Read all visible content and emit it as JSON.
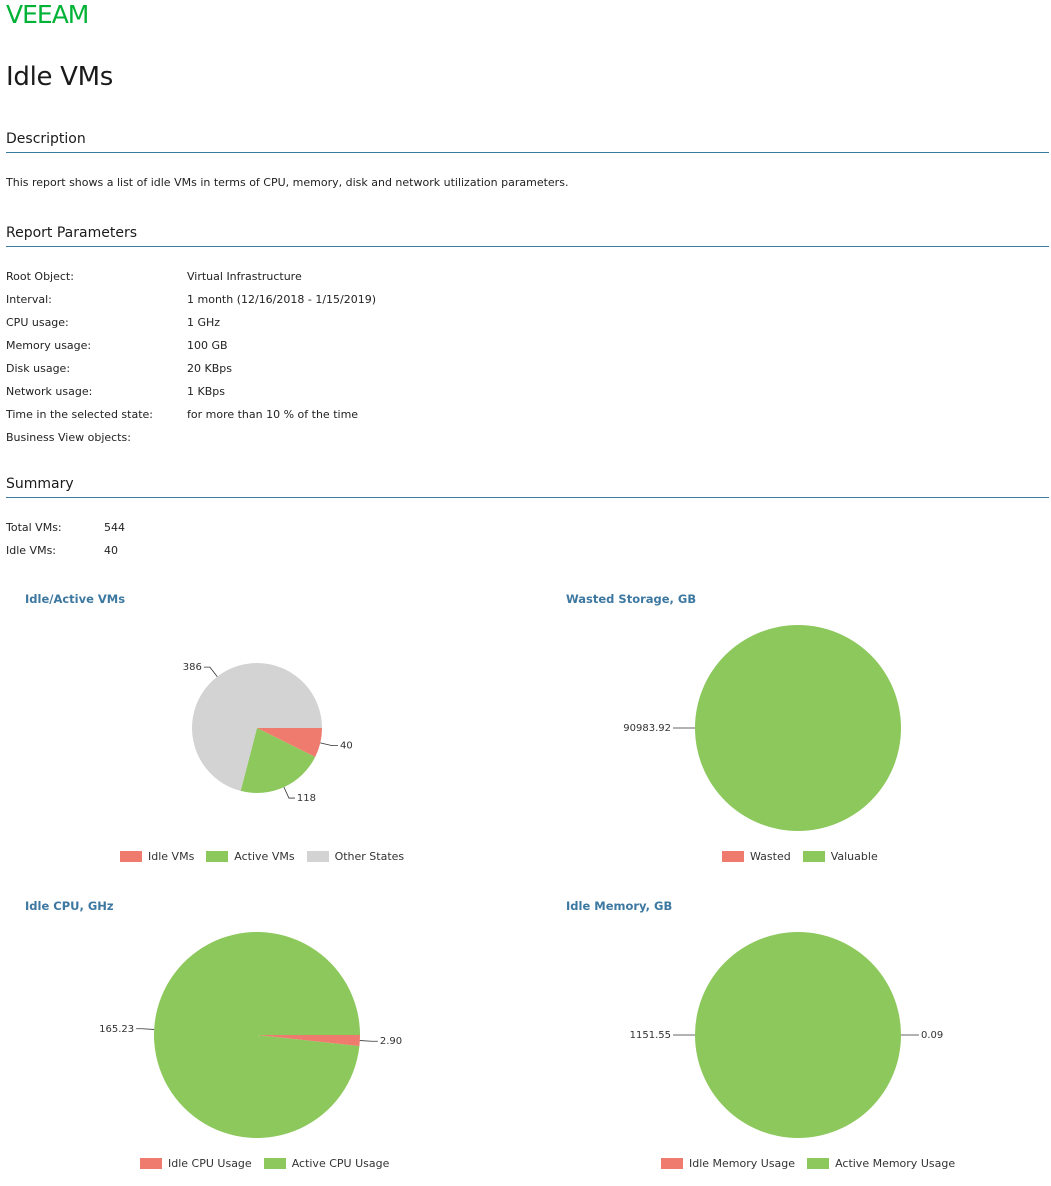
{
  "brand": {
    "logo_text": "VEEAM",
    "color": "#00b336"
  },
  "title": "Idle VMs",
  "sections": {
    "description": "Description",
    "parameters": "Report Parameters",
    "summary": "Summary"
  },
  "description_text": "This report shows a list of idle VMs in terms of CPU, memory, disk and network utilization parameters.",
  "parameters": [
    {
      "label": "Root Object:",
      "value": "Virtual Infrastructure"
    },
    {
      "label": "Interval:",
      "value": "1 month (12/16/2018 - 1/15/2019)"
    },
    {
      "label": "CPU usage:",
      "value": "1 GHz"
    },
    {
      "label": "Memory usage:",
      "value": "100 GB"
    },
    {
      "label": "Disk usage:",
      "value": "20 KBps"
    },
    {
      "label": "Network usage:",
      "value": "1 KBps"
    },
    {
      "label": "Time in the selected state:",
      "value": "for more than 10 % of the time"
    },
    {
      "label": "Business View objects:",
      "value": ""
    }
  ],
  "summary": [
    {
      "label": "Total VMs:",
      "value": "544"
    },
    {
      "label": "Idle VMs:",
      "value": "40"
    }
  ],
  "colors": {
    "red": "#ee7b6e",
    "green": "#8cc85c",
    "gray": "#d3d3d3",
    "section_rule": "#3c7a9e",
    "chart_title": "#3d78a1"
  },
  "chart_data": [
    {
      "type": "pie",
      "title": "Idle/Active VMs",
      "series": [
        {
          "name": "Idle VMs",
          "value": 40,
          "label": "40",
          "color": "#ee7b6e"
        },
        {
          "name": "Active VMs",
          "value": 118,
          "label": "118",
          "color": "#8cc85c"
        },
        {
          "name": "Other States",
          "value": 386,
          "label": "386",
          "color": "#d3d3d3"
        }
      ]
    },
    {
      "type": "pie",
      "title": "Wasted Storage, GB",
      "series": [
        {
          "name": "Wasted",
          "value": 0,
          "label": "",
          "color": "#ee7b6e"
        },
        {
          "name": "Valuable",
          "value": 90983.92,
          "label": "90983.92",
          "color": "#8cc85c"
        }
      ]
    },
    {
      "type": "pie",
      "title": "Idle CPU, GHz",
      "series": [
        {
          "name": "Idle CPU Usage",
          "value": 2.9,
          "label": "2.90",
          "color": "#ee7b6e"
        },
        {
          "name": "Active CPU Usage",
          "value": 165.23,
          "label": "165.23",
          "color": "#8cc85c"
        }
      ]
    },
    {
      "type": "pie",
      "title": "Idle Memory, GB",
      "series": [
        {
          "name": "Idle Memory Usage",
          "value": 0.09,
          "label": "0.09",
          "color": "#ee7b6e"
        },
        {
          "name": "Active Memory Usage",
          "value": 1151.55,
          "label": "1151.55",
          "color": "#8cc85c"
        }
      ]
    }
  ]
}
